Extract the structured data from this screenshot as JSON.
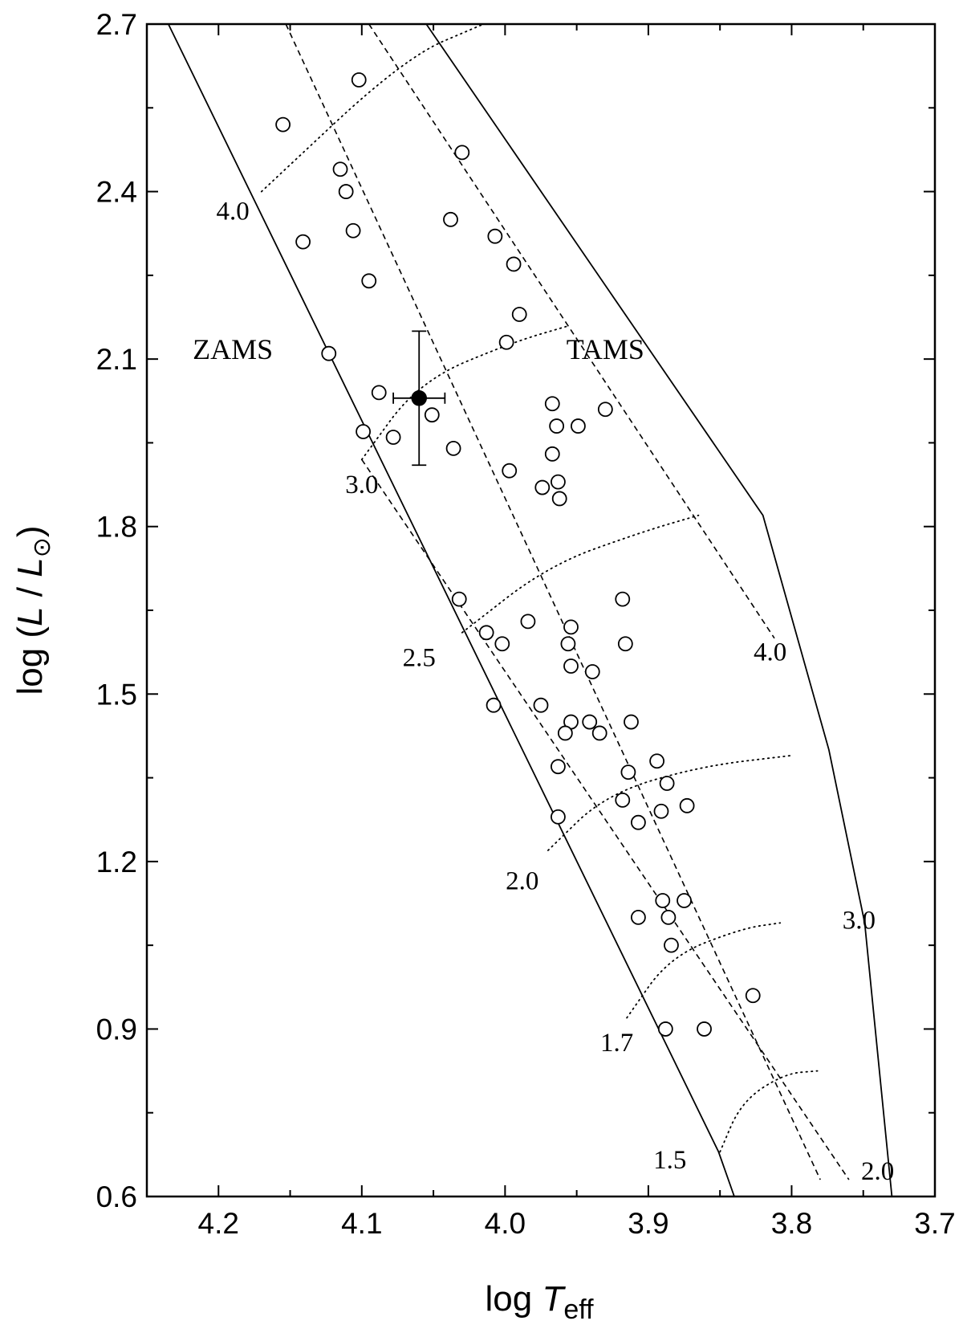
{
  "chart_data": {
    "type": "scatter",
    "title": "",
    "xlabel": {
      "prefix": "log ",
      "symbol": "T",
      "subscript": "eff"
    },
    "ylabel": {
      "prefix": "log (",
      "symbol": "L",
      "mid": " / ",
      "symbol2": "L",
      "subscript": "⊙",
      "suffix": ")"
    },
    "xlim": [
      4.25,
      3.7
    ],
    "ylim": [
      0.6,
      2.7
    ],
    "xticks": [
      "4.2",
      "4.1",
      "4.0",
      "3.9",
      "3.8",
      "3.7"
    ],
    "yticks": [
      "0.6",
      "0.9",
      "1.2",
      "1.5",
      "1.8",
      "2.1",
      "2.4",
      "2.7"
    ],
    "grid": false,
    "region_labels": [
      {
        "text": "ZAMS",
        "x": 4.19,
        "y": 2.1
      },
      {
        "text": "TAMS",
        "x": 3.93,
        "y": 2.1
      }
    ],
    "lines": {
      "zams": [
        [
          4.235,
          2.7
        ],
        [
          3.851,
          0.68
        ],
        [
          3.84,
          0.6
        ]
      ],
      "tams": [
        [
          4.055,
          2.7
        ],
        [
          3.82,
          1.82
        ],
        [
          3.774,
          1.4
        ],
        [
          3.749,
          1.09
        ],
        [
          3.73,
          0.6
        ]
      ],
      "dashed": [
        [
          [
            4.153,
            2.7
          ],
          [
            3.78,
            0.63
          ]
        ],
        [
          [
            4.1,
            1.92
          ],
          [
            3.76,
            0.63
          ]
        ],
        [
          [
            4.095,
            2.7
          ],
          [
            3.812,
            1.6
          ]
        ]
      ],
      "mass_tracks": [
        [
          [
            4.17,
            2.4
          ],
          [
            4.07,
            2.64
          ],
          [
            4.015,
            2.7
          ]
        ],
        [
          [
            4.1,
            1.92
          ],
          [
            4.06,
            2.06
          ],
          [
            3.995,
            2.13
          ],
          [
            3.955,
            2.16
          ]
        ],
        [
          [
            4.03,
            1.61
          ],
          [
            3.97,
            1.73
          ],
          [
            3.905,
            1.79
          ],
          [
            3.865,
            1.82
          ]
        ],
        [
          [
            3.97,
            1.22
          ],
          [
            3.93,
            1.32
          ],
          [
            3.865,
            1.37
          ],
          [
            3.8,
            1.39
          ]
        ],
        [
          [
            3.915,
            0.92
          ],
          [
            3.885,
            1.03
          ],
          [
            3.835,
            1.08
          ],
          [
            3.808,
            1.09
          ]
        ],
        [
          [
            3.85,
            0.68
          ],
          [
            3.835,
            0.77
          ],
          [
            3.805,
            0.82
          ],
          [
            3.782,
            0.825
          ]
        ]
      ]
    },
    "mass_labels": [
      {
        "text": "4.0",
        "x": 4.19,
        "y": 2.35
      },
      {
        "text": "3.0",
        "x": 4.1,
        "y": 1.86
      },
      {
        "text": "2.5",
        "x": 4.06,
        "y": 1.55
      },
      {
        "text": "2.0",
        "x": 3.988,
        "y": 1.15
      },
      {
        "text": "1.7",
        "x": 3.922,
        "y": 0.86
      },
      {
        "text": "1.5",
        "x": 3.885,
        "y": 0.65
      },
      {
        "text": "4.0",
        "x": 3.815,
        "y": 1.56
      },
      {
        "text": "3.0",
        "x": 3.753,
        "y": 1.08
      },
      {
        "text": "2.0",
        "x": 3.74,
        "y": 0.63
      }
    ],
    "series": [
      {
        "marker": "open-circle",
        "points": [
          [
            4.155,
            2.52
          ],
          [
            4.102,
            2.6
          ],
          [
            4.03,
            2.47
          ],
          [
            4.115,
            2.44
          ],
          [
            4.111,
            2.4
          ],
          [
            4.141,
            2.31
          ],
          [
            4.106,
            2.33
          ],
          [
            4.038,
            2.35
          ],
          [
            4.007,
            2.32
          ],
          [
            3.994,
            2.27
          ],
          [
            4.095,
            2.24
          ],
          [
            3.99,
            2.18
          ],
          [
            4.123,
            2.11
          ],
          [
            3.999,
            2.13
          ],
          [
            4.088,
            2.04
          ],
          [
            3.967,
            2.02
          ],
          [
            4.051,
            2.0
          ],
          [
            3.964,
            1.98
          ],
          [
            3.949,
            1.98
          ],
          [
            3.93,
            2.01
          ],
          [
            4.099,
            1.97
          ],
          [
            4.078,
            1.96
          ],
          [
            4.036,
            1.94
          ],
          [
            3.967,
            1.93
          ],
          [
            3.997,
            1.9
          ],
          [
            3.963,
            1.88
          ],
          [
            3.974,
            1.87
          ],
          [
            3.962,
            1.85
          ],
          [
            4.032,
            1.67
          ],
          [
            3.918,
            1.67
          ],
          [
            3.984,
            1.63
          ],
          [
            3.954,
            1.62
          ],
          [
            4.013,
            1.61
          ],
          [
            4.002,
            1.59
          ],
          [
            3.956,
            1.59
          ],
          [
            3.916,
            1.59
          ],
          [
            3.954,
            1.55
          ],
          [
            3.939,
            1.54
          ],
          [
            3.975,
            1.48
          ],
          [
            4.008,
            1.48
          ],
          [
            3.941,
            1.45
          ],
          [
            3.954,
            1.45
          ],
          [
            3.912,
            1.45
          ],
          [
            3.958,
            1.43
          ],
          [
            3.934,
            1.43
          ],
          [
            3.894,
            1.38
          ],
          [
            3.963,
            1.37
          ],
          [
            3.914,
            1.36
          ],
          [
            3.887,
            1.34
          ],
          [
            3.918,
            1.31
          ],
          [
            3.891,
            1.29
          ],
          [
            3.873,
            1.3
          ],
          [
            3.963,
            1.28
          ],
          [
            3.907,
            1.27
          ],
          [
            3.89,
            1.13
          ],
          [
            3.875,
            1.13
          ],
          [
            3.907,
            1.1
          ],
          [
            3.886,
            1.1
          ],
          [
            3.884,
            1.05
          ],
          [
            3.827,
            0.96
          ],
          [
            3.888,
            0.9
          ],
          [
            3.861,
            0.9
          ]
        ]
      },
      {
        "marker": "filled-circle",
        "points": [
          [
            4.06,
            2.03
          ]
        ],
        "error": {
          "xerr": 0.018,
          "yerr": 0.12
        }
      }
    ]
  }
}
